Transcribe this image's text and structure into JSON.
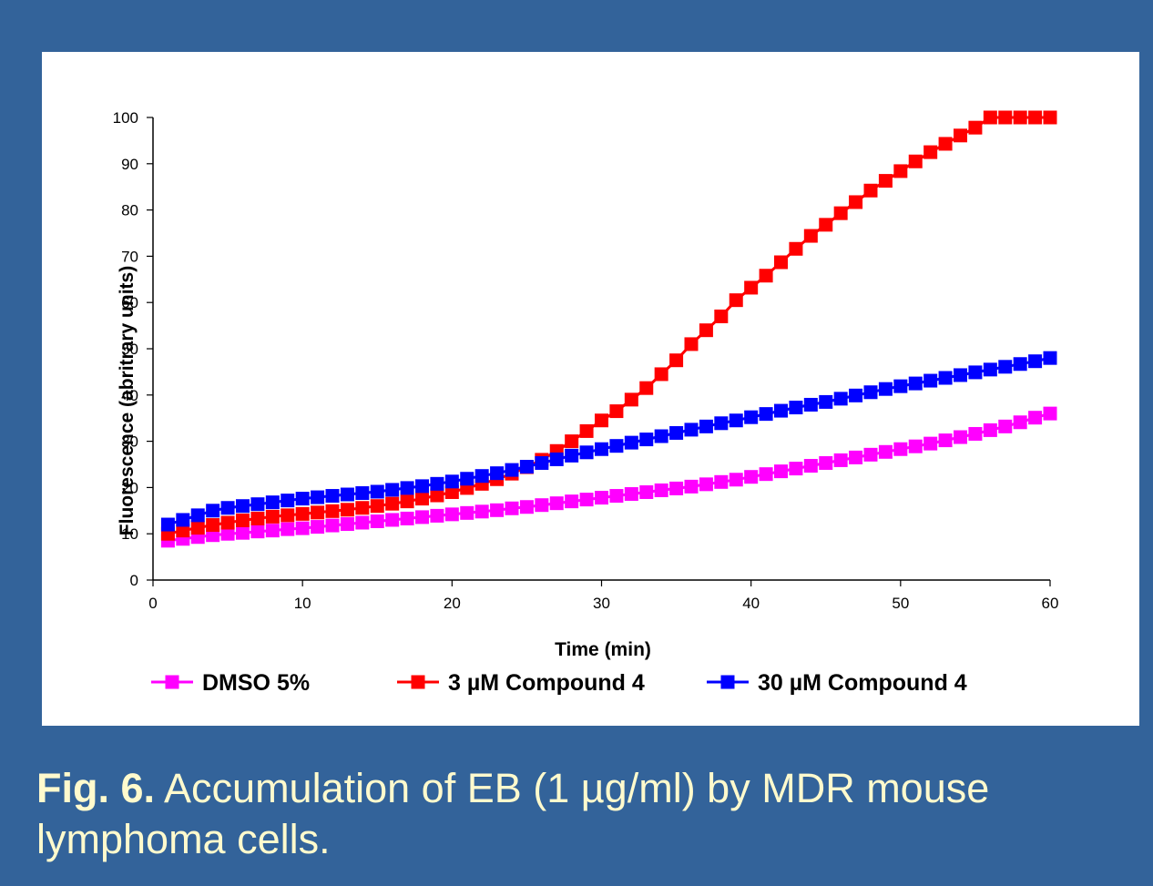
{
  "colors": {
    "background": "#33639a",
    "panel": "#ffffff",
    "caption_text": "#fffacd",
    "dmso": "#ff00ff",
    "compound_3uM": "#ff0000",
    "compound_30uM": "#0000ff"
  },
  "caption": {
    "label": "Fig. 6.",
    "text": " Accumulation of EB (1 µg/ml) by MDR mouse lymphoma cells."
  },
  "chart_data": {
    "type": "line",
    "xlabel": "Time (min)",
    "ylabel": "Fluorescence (abritrary units)",
    "xlim": [
      0,
      60
    ],
    "ylim": [
      0,
      100
    ],
    "xticks": [
      0,
      10,
      20,
      30,
      40,
      50,
      60
    ],
    "yticks": [
      0,
      10,
      20,
      30,
      40,
      50,
      60,
      70,
      80,
      90,
      100
    ],
    "legend_position": "bottom",
    "grid": false,
    "x": [
      1,
      2,
      3,
      4,
      5,
      6,
      7,
      8,
      9,
      10,
      11,
      12,
      13,
      14,
      15,
      16,
      17,
      18,
      19,
      20,
      21,
      22,
      23,
      24,
      25,
      26,
      27,
      28,
      29,
      30,
      31,
      32,
      33,
      34,
      35,
      36,
      37,
      38,
      39,
      40,
      41,
      42,
      43,
      44,
      45,
      46,
      47,
      48,
      49,
      50,
      51,
      52,
      53,
      54,
      55,
      56,
      57,
      58,
      59,
      60
    ],
    "series": [
      {
        "name": "DMSO 5%",
        "color": "#ff00ff",
        "values": [
          8.5,
          8.9,
          9.3,
          9.7,
          10.0,
          10.2,
          10.5,
          10.7,
          11.0,
          11.2,
          11.5,
          11.8,
          12.1,
          12.4,
          12.7,
          13.0,
          13.3,
          13.6,
          13.9,
          14.2,
          14.5,
          14.8,
          15.1,
          15.5,
          15.8,
          16.2,
          16.6,
          17.0,
          17.4,
          17.8,
          18.2,
          18.6,
          19.0,
          19.4,
          19.8,
          20.2,
          20.7,
          21.2,
          21.7,
          22.3,
          22.9,
          23.5,
          24.1,
          24.7,
          25.3,
          25.9,
          26.5,
          27.1,
          27.7,
          28.3,
          28.9,
          29.5,
          30.2,
          30.9,
          31.6,
          32.4,
          33.2,
          34.1,
          35.1,
          36.0
        ]
      },
      {
        "name": "3 µM Compound 4",
        "color": "#ff0000",
        "values": [
          10.0,
          10.7,
          11.3,
          11.9,
          12.4,
          12.9,
          13.3,
          13.7,
          14.0,
          14.3,
          14.6,
          14.9,
          15.2,
          15.6,
          16.0,
          16.5,
          17.0,
          17.6,
          18.3,
          19.0,
          19.9,
          20.8,
          21.8,
          23.0,
          24.4,
          26.0,
          27.9,
          30.0,
          32.2,
          34.5,
          36.5,
          39.0,
          41.5,
          44.5,
          47.5,
          51.0,
          54.0,
          57.0,
          60.5,
          63.2,
          65.8,
          68.7,
          71.6,
          74.4,
          76.8,
          79.3,
          81.7,
          84.2,
          86.3,
          88.4,
          90.5,
          92.5,
          94.3,
          96.1,
          97.8,
          100,
          100,
          100,
          100,
          100
        ]
      },
      {
        "name": "30 µM Compound 4",
        "color": "#0000ff",
        "values": [
          12.0,
          13.0,
          14.0,
          15.0,
          15.6,
          16.0,
          16.4,
          16.8,
          17.2,
          17.6,
          17.9,
          18.2,
          18.5,
          18.8,
          19.1,
          19.5,
          19.9,
          20.3,
          20.8,
          21.3,
          21.9,
          22.5,
          23.1,
          23.8,
          24.5,
          25.3,
          26.1,
          26.9,
          27.6,
          28.3,
          29.0,
          29.7,
          30.4,
          31.1,
          31.8,
          32.5,
          33.2,
          33.9,
          34.5,
          35.2,
          35.9,
          36.6,
          37.3,
          37.9,
          38.5,
          39.2,
          39.9,
          40.6,
          41.3,
          41.9,
          42.5,
          43.1,
          43.7,
          44.3,
          44.9,
          45.5,
          46.1,
          46.7,
          47.3,
          48.0
        ]
      }
    ]
  }
}
